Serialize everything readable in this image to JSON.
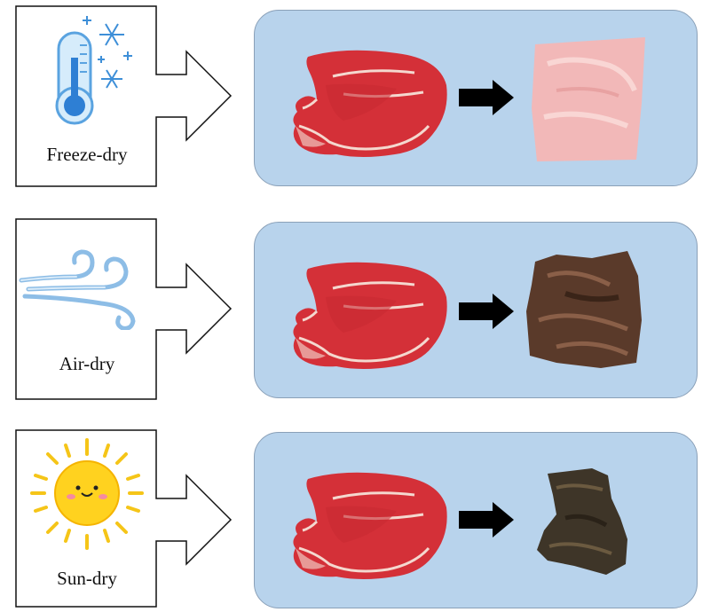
{
  "rows": [
    {
      "label": "Freeze-dry",
      "icon": "thermometer-snowflake-icon",
      "result_color": "#f2b8b8"
    },
    {
      "label": "Air-dry",
      "icon": "wind-icon",
      "result_color": "#5a3a2a"
    },
    {
      "label": "Sun-dry",
      "icon": "sun-icon",
      "result_color": "#3e3528"
    }
  ],
  "colors": {
    "panel": "#b8d3ec",
    "raw_meat": "#d8333b",
    "arrow": "#000000"
  }
}
